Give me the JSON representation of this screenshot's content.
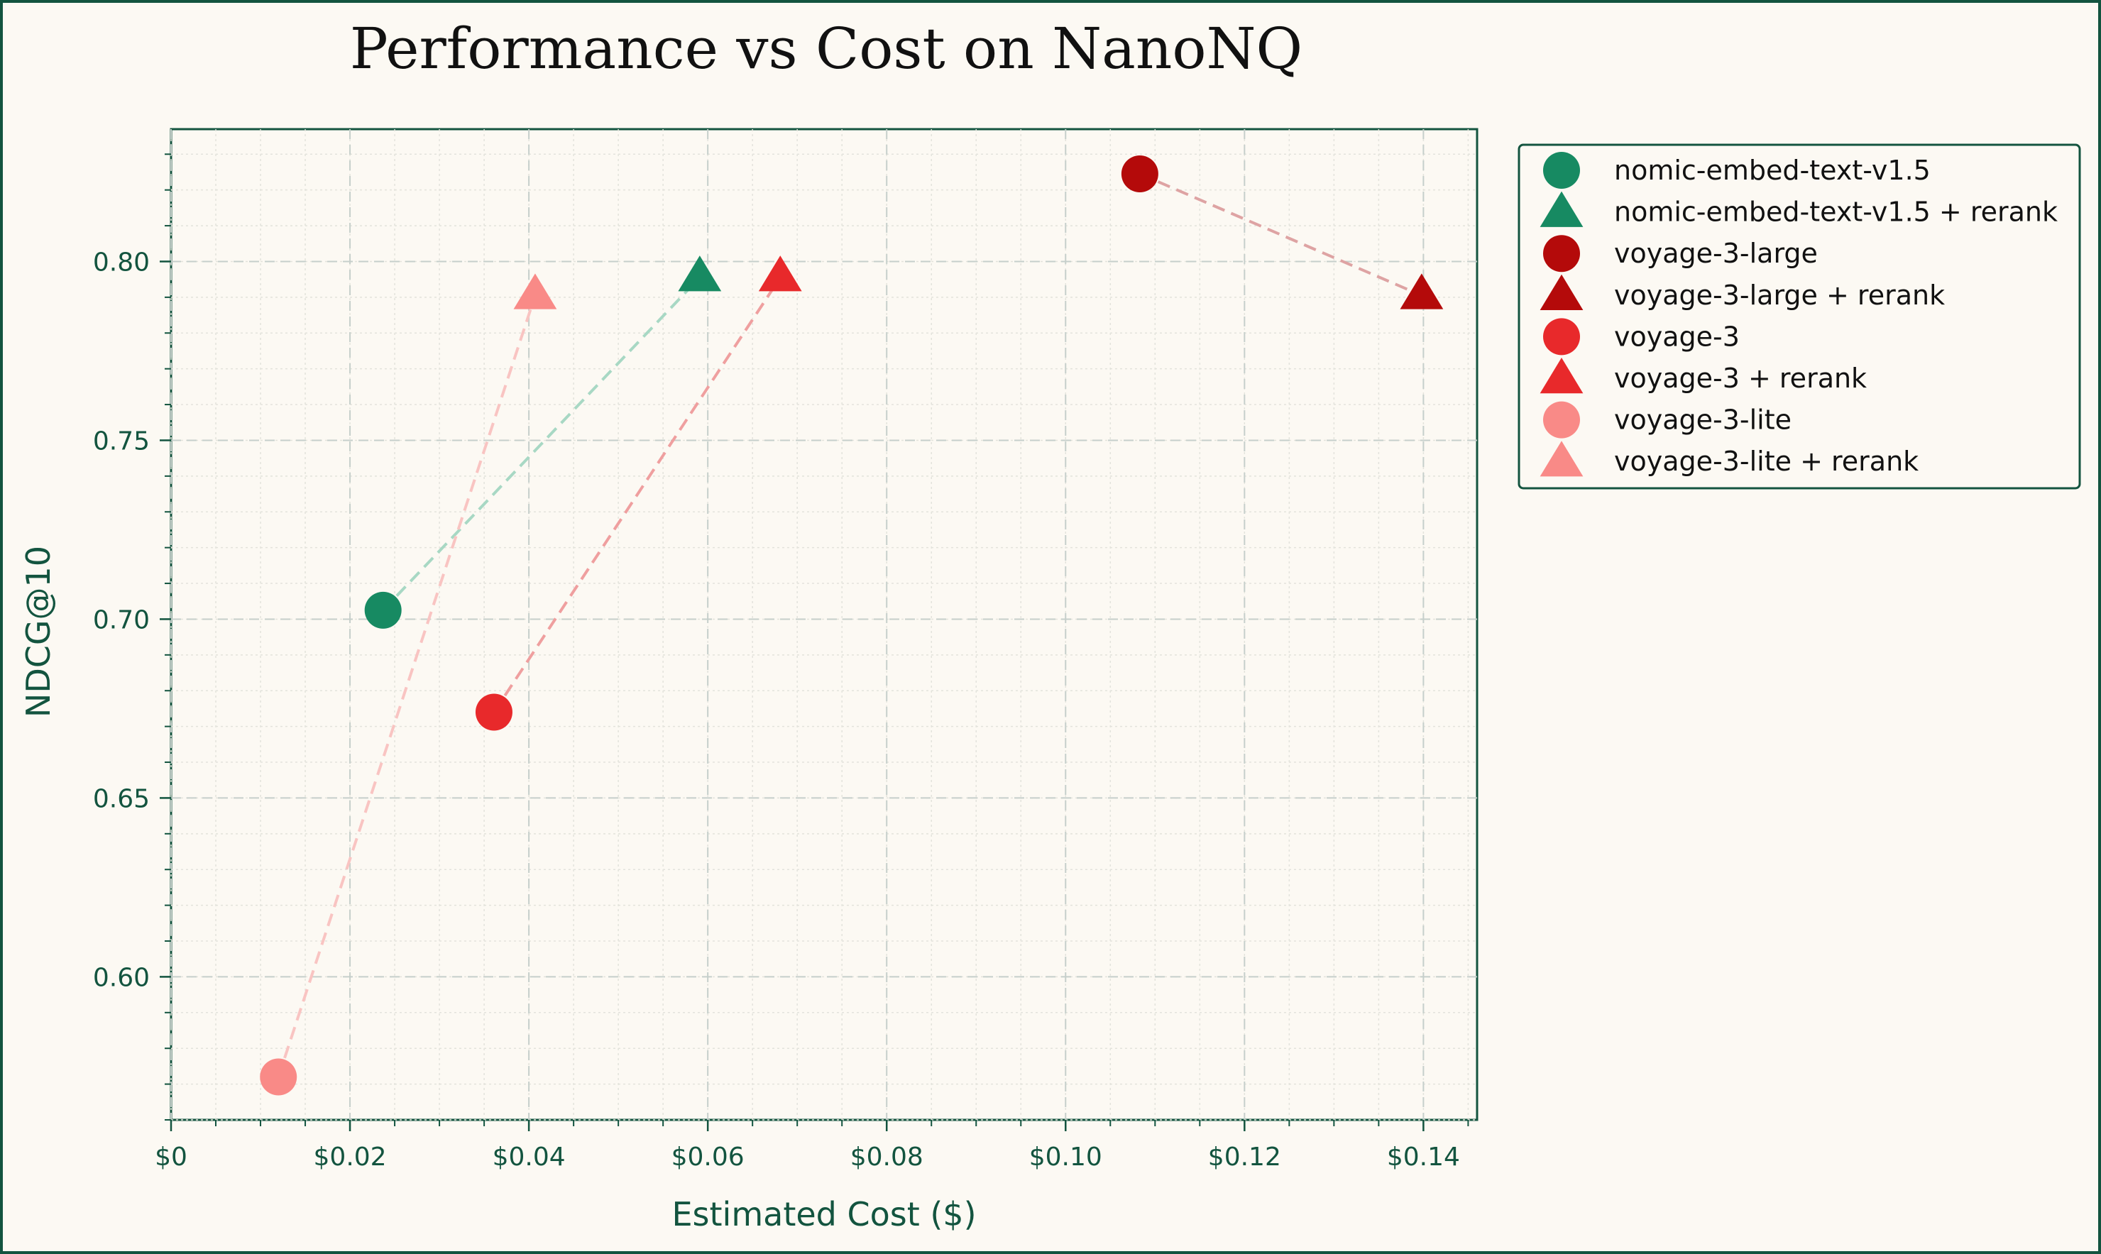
{
  "chart_data": {
    "type": "scatter",
    "title": "Performance vs Cost on NanoNQ",
    "xlabel": "Estimated Cost ($)",
    "ylabel": "NDCG@10",
    "xlim": [
      0,
      0.146
    ],
    "ylim": [
      0.56,
      0.837
    ],
    "x_ticks": [
      0,
      0.02,
      0.04,
      0.06,
      0.08,
      0.1,
      0.12,
      0.14
    ],
    "x_tick_labels": [
      "$0",
      "$0.02",
      "$0.04",
      "$0.06",
      "$0.08",
      "$0.10",
      "$0.12",
      "$0.14"
    ],
    "y_ticks": [
      0.6,
      0.65,
      0.7,
      0.75,
      0.8
    ],
    "y_tick_labels": [
      "0.60",
      "0.65",
      "0.70",
      "0.75",
      "0.80"
    ],
    "grid": true,
    "legend_position": "outside-top-right",
    "series": [
      {
        "name": "nomic-embed-text-v1.5",
        "marker": "circle",
        "color": "#178a62",
        "x": 0.0237,
        "y": 0.7025
      },
      {
        "name": "nomic-embed-text-v1.5 + rerank",
        "marker": "triangle",
        "color": "#178a62",
        "x": 0.0591,
        "y": 0.7955
      },
      {
        "name": "voyage-3-large",
        "marker": "circle",
        "color": "#b40a0a",
        "x": 0.1083,
        "y": 0.8245
      },
      {
        "name": "voyage-3-large + rerank",
        "marker": "triangle",
        "color": "#b40a0a",
        "x": 0.1398,
        "y": 0.7905
      },
      {
        "name": "voyage-3",
        "marker": "circle",
        "color": "#e8292b",
        "x": 0.0361,
        "y": 0.674
      },
      {
        "name": "voyage-3 + rerank",
        "marker": "triangle",
        "color": "#e8292b",
        "x": 0.0681,
        "y": 0.7955
      },
      {
        "name": "voyage-3-lite",
        "marker": "circle",
        "color": "#f98a87",
        "x": 0.012,
        "y": 0.572
      },
      {
        "name": "voyage-3-lite + rerank",
        "marker": "triangle",
        "color": "#f98a87",
        "x": 0.0407,
        "y": 0.7905
      }
    ],
    "connections": [
      {
        "from": 0,
        "to": 1,
        "color": "#a8d8c4"
      },
      {
        "from": 2,
        "to": 3,
        "color": "#dea3a3"
      },
      {
        "from": 4,
        "to": 5,
        "color": "#ef9f9f"
      },
      {
        "from": 6,
        "to": 7,
        "color": "#f9c4c2"
      }
    ]
  },
  "colors": {
    "frame": "#13543f",
    "background": "#fcf9f3",
    "axis": "#13543f"
  }
}
